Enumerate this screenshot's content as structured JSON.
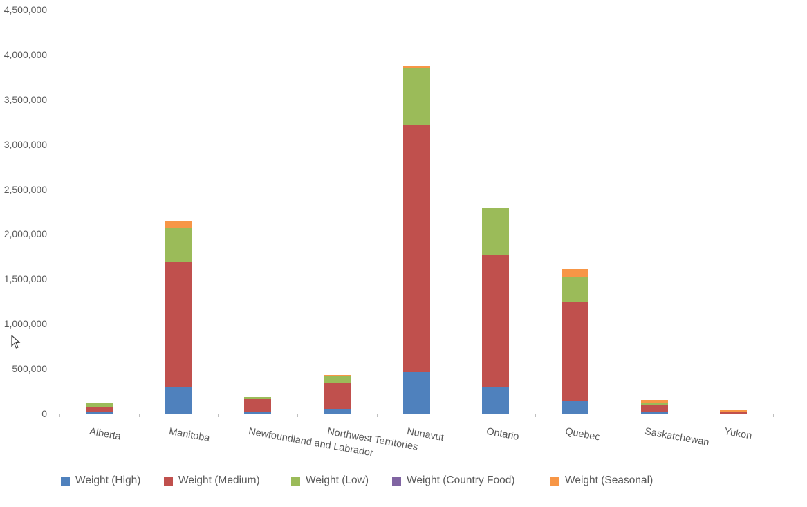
{
  "chart_data": {
    "type": "bar",
    "stacked": true,
    "title": "",
    "xlabel": "",
    "ylabel": "",
    "grid": true,
    "legend_position": "bottom",
    "ylim": [
      0,
      4500000
    ],
    "ytick_interval": 500000,
    "ytick_labels": [
      "0",
      "500,000",
      "1,000,000",
      "1,500,000",
      "2,000,000",
      "2,500,000",
      "3,000,000",
      "3,500,000",
      "4,000,000",
      "4,500,000"
    ],
    "categories": [
      "Alberta",
      "Manitoba",
      "Newfoundland and Labrador",
      "Northwest Territories",
      "Nunavut",
      "Ontario",
      "Quebec",
      "Saskatchewan",
      "Yukon"
    ],
    "series": [
      {
        "name": "Weight (High)",
        "color": "#4F81BD",
        "values": [
          15000,
          300000,
          15000,
          55000,
          460000,
          300000,
          135000,
          12000,
          0
        ]
      },
      {
        "name": "Weight (Medium)",
        "color": "#C0504D",
        "values": [
          65000,
          1385000,
          145000,
          285000,
          2760000,
          1470000,
          1115000,
          85000,
          14000
        ]
      },
      {
        "name": "Weight (Low)",
        "color": "#9BBB59",
        "values": [
          38000,
          390000,
          28000,
          75000,
          635000,
          515000,
          270000,
          23000,
          12000
        ]
      },
      {
        "name": "Weight (Country Food)",
        "color": "#8064A2",
        "values": [
          0,
          0,
          0,
          0,
          0,
          0,
          0,
          0,
          0
        ]
      },
      {
        "name": "Weight (Seasonal)",
        "color": "#F79646",
        "values": [
          0,
          70000,
          0,
          15000,
          20000,
          0,
          90000,
          23000,
          12000
        ]
      }
    ],
    "totals": [
      118000,
      2145000,
      188000,
      430000,
      3875000,
      2285000,
      1610000,
      143000,
      38000
    ],
    "colors": {
      "gridline": "#d9d9d9",
      "axis": "#bfbfbf",
      "text": "#595959",
      "background": "#ffffff"
    }
  }
}
